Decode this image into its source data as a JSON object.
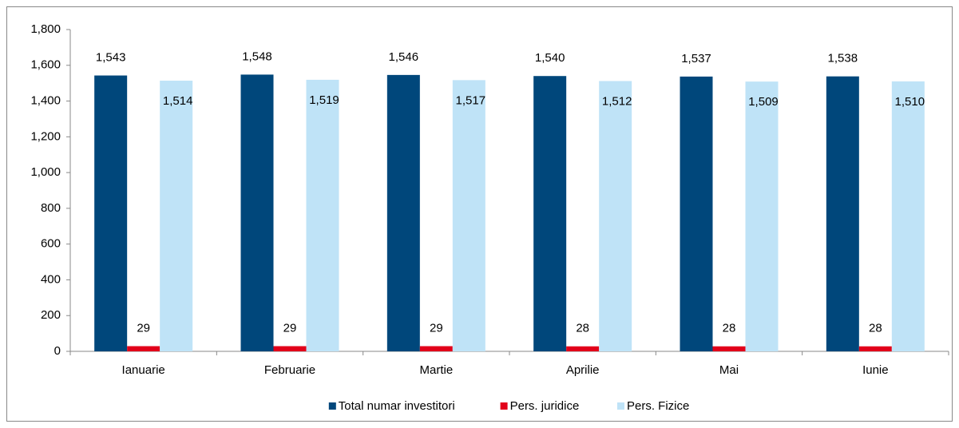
{
  "chart_data": {
    "type": "bar",
    "categories": [
      "Ianuarie",
      "Februarie",
      "Martie",
      "Aprilie",
      "Mai",
      "Iunie"
    ],
    "series": [
      {
        "name": "Total numar investitori",
        "color": "#00477b",
        "values": [
          1543,
          1548,
          1546,
          1540,
          1537,
          1538
        ],
        "value_labels": [
          "1,543",
          "1,548",
          "1,546",
          "1,540",
          "1,537",
          "1,538"
        ]
      },
      {
        "name": "Pers. juridice",
        "color": "#e2001a",
        "values": [
          29,
          29,
          29,
          28,
          28,
          28
        ]
      },
      {
        "name": "Pers. Fizice",
        "color": "#bfe3f7",
        "values": [
          1514,
          1519,
          1517,
          1512,
          1509,
          1510
        ],
        "value_labels": [
          "1,514",
          "1,519",
          "1,517",
          "1,512",
          "1,509",
          "1,510"
        ]
      }
    ],
    "ylim": [
      0,
      1800
    ],
    "yticks": [
      0,
      200,
      400,
      600,
      800,
      {
        "value": 1000,
        "label": "1,000"
      },
      {
        "value": 1200,
        "label": "1,200"
      },
      {
        "value": 1400,
        "label": "1,400"
      },
      {
        "value": 1600,
        "label": "1,600"
      },
      {
        "value": 1800,
        "label": "1,800"
      }
    ],
    "grid": false,
    "legend": "bottom"
  }
}
